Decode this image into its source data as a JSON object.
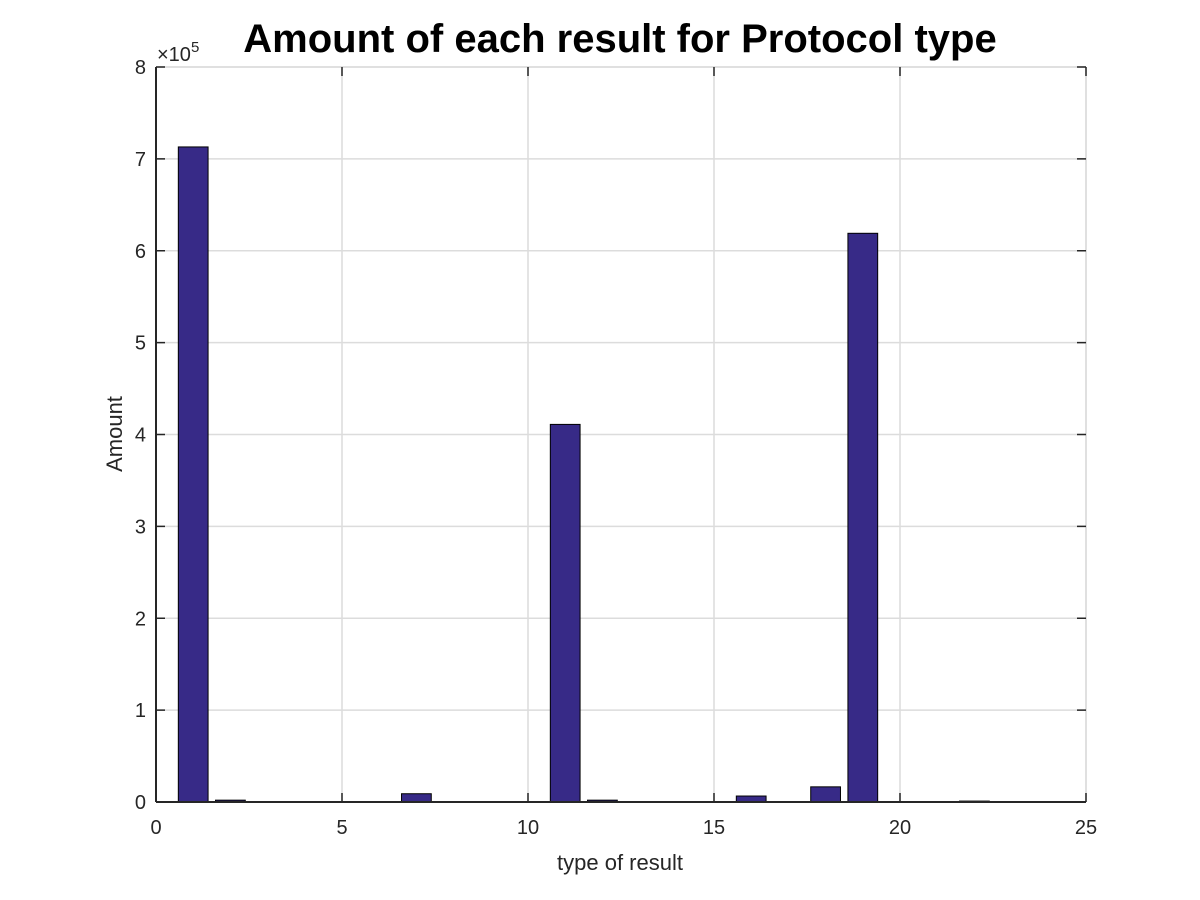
{
  "chart_data": {
    "type": "bar",
    "title": "Amount of each result for Protocol type",
    "xlabel": "type of result",
    "ylabel": "Amount",
    "y_multiplier": "×10",
    "y_multiplier_exponent": "5",
    "x": [
      1,
      2,
      3,
      4,
      5,
      6,
      7,
      8,
      9,
      10,
      11,
      12,
      13,
      14,
      15,
      16,
      17,
      18,
      19,
      20,
      21,
      22,
      23
    ],
    "values": [
      713000,
      2000,
      200,
      100,
      100,
      300,
      9000,
      200,
      100,
      100,
      411000,
      2000,
      100,
      100,
      100,
      6500,
      300,
      16500,
      619000,
      500,
      300,
      1000,
      200
    ],
    "xlim": [
      0,
      25
    ],
    "ylim": [
      0,
      800000
    ],
    "xticks": [
      0,
      5,
      10,
      15,
      20,
      25
    ],
    "yticks": [
      0,
      100000,
      200000,
      300000,
      400000,
      500000,
      600000,
      700000,
      800000
    ],
    "ytick_labels": [
      "0",
      "1",
      "2",
      "3",
      "4",
      "5",
      "6",
      "7",
      "8"
    ],
    "grid": true,
    "bar_color": "#372a87",
    "bar_edge_color": "#000000",
    "grid_color": "#dcdcdc",
    "axis_color": "#262626"
  }
}
